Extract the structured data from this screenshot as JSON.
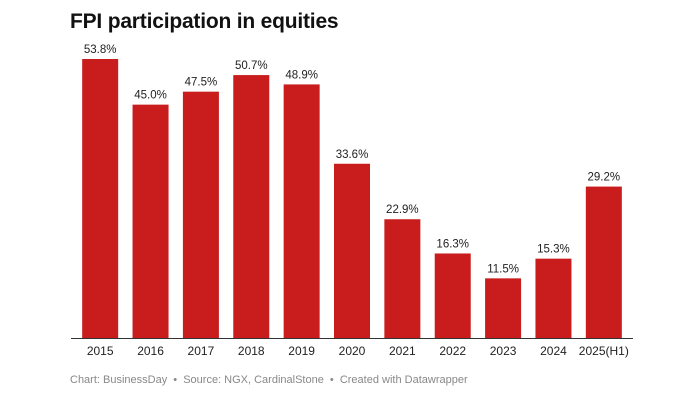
{
  "chart_data": {
    "type": "bar",
    "title": "FPI participation in equities",
    "categories": [
      "2015",
      "2016",
      "2017",
      "2018",
      "2019",
      "2020",
      "2021",
      "2022",
      "2023",
      "2024",
      "2025(H1)"
    ],
    "values": [
      53.8,
      45.0,
      47.5,
      50.7,
      48.9,
      33.6,
      22.9,
      16.3,
      11.5,
      15.3,
      29.2
    ],
    "value_labels": [
      "53.8%",
      "45.0%",
      "47.5%",
      "50.7%",
      "48.9%",
      "33.6%",
      "22.9%",
      "16.3%",
      "11.5%",
      "15.3%",
      "29.2%"
    ],
    "unit": "%",
    "xlabel": "",
    "ylabel": "",
    "ylim": [
      0,
      53.8
    ],
    "grid": false,
    "bar_color": "#c91c1c",
    "axis_color": "#333333"
  },
  "footer": {
    "chart_credit": "Chart: BusinessDay",
    "source": "Source: NGX, CardinalStone",
    "created_with": "Created with Datawrapper",
    "separator": "•"
  }
}
